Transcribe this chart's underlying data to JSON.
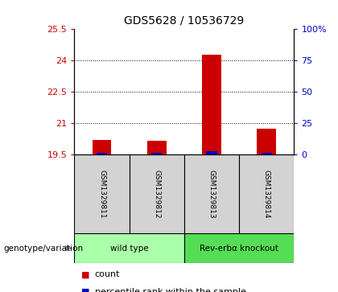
{
  "title": "GDS5628 / 10536729",
  "samples": [
    "GSM1329811",
    "GSM1329812",
    "GSM1329813",
    "GSM1329814"
  ],
  "groups": [
    {
      "label": "wild type",
      "indices": [
        0,
        1
      ],
      "color": "#aaffaa"
    },
    {
      "label": "Rev-erbα knockout",
      "indices": [
        2,
        3
      ],
      "color": "#55dd55"
    }
  ],
  "count_baseline": 19.5,
  "count_values": [
    20.2,
    20.15,
    24.28,
    20.75
  ],
  "percentile_values": [
    1.5,
    1.5,
    3.0,
    1.5
  ],
  "ylim_left": [
    19.5,
    25.5
  ],
  "ylim_right": [
    0,
    100
  ],
  "yticks_left": [
    19.5,
    21.0,
    22.5,
    24.0,
    25.5
  ],
  "yticks_right": [
    0,
    25,
    50,
    75,
    100
  ],
  "ytick_labels_left": [
    "19.5",
    "21",
    "22.5",
    "24",
    "25.5"
  ],
  "ytick_labels_right": [
    "0",
    "25",
    "50",
    "75",
    "100%"
  ],
  "bar_width": 0.35,
  "red_color": "#cc0000",
  "blue_color": "#0000cc",
  "background_color": "#ffffff"
}
